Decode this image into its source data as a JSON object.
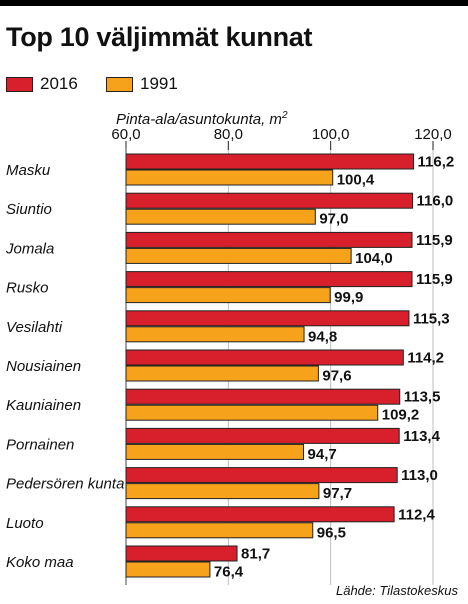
{
  "title": "Top 10 väljimmät kunnat",
  "legend": {
    "s2016": "2016",
    "s1991": "1991"
  },
  "xlabel_text": "Pinta-ala/asuntokunta, m",
  "xlabel_sup": "2",
  "source": "Lähde: Tilastokeskus",
  "colors": {
    "s2016": "#d7202c",
    "s1991": "#f7a21b",
    "stroke": "#222222",
    "grid": "#bdbdbd"
  },
  "chart_data": {
    "type": "bar",
    "orientation": "horizontal",
    "xlim": [
      60,
      120
    ],
    "ticks": [
      "60,0",
      "80,0",
      "100,0",
      "120,0"
    ],
    "tick_values": [
      60,
      80,
      100,
      120
    ],
    "categories": [
      "Masku",
      "Siuntio",
      "Jomala",
      "Rusko",
      "Vesilahti",
      "Nousiainen",
      "Kauniainen",
      "Pornainen",
      "Pedersören kunta",
      "Luoto",
      "Koko maa"
    ],
    "series": [
      {
        "name": "2016",
        "values": [
          116.2,
          116.0,
          115.9,
          115.9,
          115.3,
          114.2,
          113.5,
          113.4,
          113.0,
          112.4,
          81.7
        ],
        "labels": [
          "116,2",
          "116,0",
          "115,9",
          "115,9",
          "115,3",
          "114,2",
          "113,5",
          "113,4",
          "113,0",
          "112,4",
          "81,7"
        ]
      },
      {
        "name": "1991",
        "values": [
          100.4,
          97.0,
          104.0,
          99.9,
          94.8,
          97.6,
          109.2,
          94.7,
          97.7,
          96.5,
          76.4
        ],
        "labels": [
          "100,4",
          "97,0",
          "104,0",
          "99,9",
          "94,8",
          "97,6",
          "109,2",
          "94,7",
          "97,7",
          "96,5",
          "76,4"
        ]
      }
    ],
    "grid": true,
    "legend_position": "top-left"
  }
}
